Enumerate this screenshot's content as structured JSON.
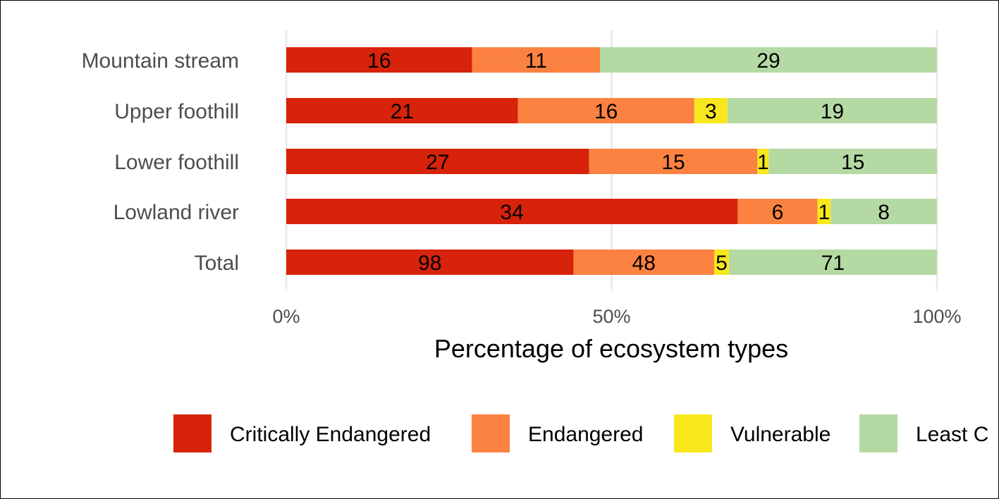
{
  "chart_data": {
    "type": "bar",
    "orientation": "horizontal",
    "stacked": "percent",
    "categories": [
      "Mountain stream",
      "Upper foothill",
      "Lower foothill",
      "Lowland river",
      "Total"
    ],
    "series": [
      {
        "name": "Critically Endangered",
        "color": "#d7230b",
        "values": [
          16,
          21,
          27,
          34,
          98
        ]
      },
      {
        "name": "Endangered",
        "color": "#fc8241",
        "values": [
          11,
          16,
          15,
          6,
          48
        ]
      },
      {
        "name": "Vulnerable",
        "color": "#f8e71c",
        "values": [
          0,
          3,
          1,
          1,
          5
        ]
      },
      {
        "name": "Least C",
        "color": "#b5d9a3",
        "values": [
          29,
          19,
          15,
          8,
          71
        ]
      }
    ],
    "xlabel": "Percentage of ecosystem types",
    "ylabel": "",
    "xlim": [
      0,
      100
    ],
    "xticks": [
      0,
      50,
      100
    ],
    "xtick_labels": [
      "0%",
      "50%",
      "100%"
    ],
    "grid": "vertical major lines",
    "legend_position": "bottom"
  }
}
